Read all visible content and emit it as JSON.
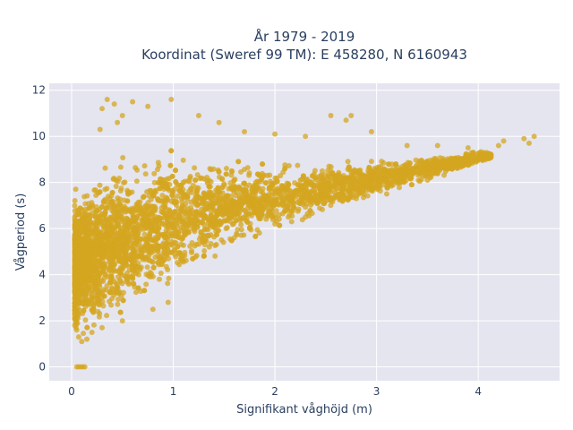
{
  "colors": {
    "plot_bg": "#e5e5f0",
    "grid": "#ffffff",
    "marker": "#d4a520",
    "text": "#2a3f5f"
  },
  "chart_data": {
    "type": "scatter",
    "title_line1": "År 1979 - 2019",
    "title_line2": "Koordinat (Sweref 99 TM): E 458280, N 6160943",
    "xlabel": "Signifikant våghöjd (m)",
    "ylabel": "Vågperiod (s)",
    "xlim": [
      -0.22,
      4.8
    ],
    "ylim": [
      -0.6,
      12.3
    ],
    "xticks": [
      0,
      1,
      2,
      3,
      4
    ],
    "yticks": [
      0,
      2,
      4,
      6,
      8,
      10,
      12
    ],
    "grid": true,
    "legend": "none",
    "series": [
      {
        "marker_color": "#d4a520",
        "opacity": 0.75,
        "points": [
          [
            0.05,
            0.0
          ],
          [
            0.07,
            0.0
          ],
          [
            0.09,
            0.0
          ],
          [
            0.11,
            0.0
          ],
          [
            0.13,
            0.0
          ],
          [
            0.3,
            11.2
          ],
          [
            0.35,
            11.6
          ],
          [
            0.42,
            11.4
          ],
          [
            0.5,
            10.9
          ],
          [
            0.6,
            11.5
          ],
          [
            0.75,
            11.3
          ],
          [
            0.98,
            11.6
          ],
          [
            0.45,
            10.6
          ],
          [
            0.28,
            10.3
          ],
          [
            1.25,
            10.9
          ],
          [
            1.45,
            10.6
          ],
          [
            1.7,
            10.2
          ],
          [
            2.0,
            10.1
          ],
          [
            2.55,
            10.9
          ],
          [
            2.7,
            10.7
          ],
          [
            2.75,
            10.9
          ],
          [
            2.95,
            10.2
          ],
          [
            2.3,
            10.0
          ],
          [
            3.3,
            9.6
          ],
          [
            3.6,
            9.6
          ],
          [
            3.9,
            9.5
          ],
          [
            4.2,
            9.6
          ],
          [
            4.45,
            9.9
          ],
          [
            4.55,
            10.0
          ],
          [
            4.5,
            9.7
          ],
          [
            4.25,
            9.8
          ],
          [
            0.05,
            1.6
          ],
          [
            0.07,
            1.3
          ],
          [
            0.1,
            1.1
          ],
          [
            0.15,
            1.2
          ],
          [
            0.2,
            1.5
          ],
          [
            0.3,
            1.7
          ],
          [
            0.5,
            2.0
          ],
          [
            0.8,
            2.5
          ],
          [
            0.95,
            2.8
          ],
          [
            1.3,
            4.8
          ],
          [
            1.6,
            5.6
          ],
          [
            2.0,
            6.2
          ],
          [
            2.3,
            6.5
          ],
          [
            2.8,
            7.3
          ],
          [
            3.1,
            7.5
          ],
          [
            3.5,
            8.1
          ],
          [
            3.7,
            8.6
          ],
          [
            3.9,
            9.0
          ],
          [
            4.05,
            9.3
          ]
        ]
      }
    ]
  }
}
